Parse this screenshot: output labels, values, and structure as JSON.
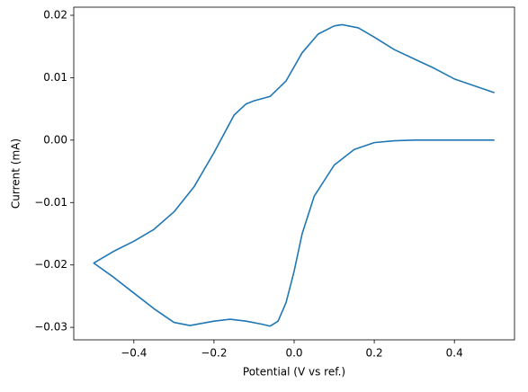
{
  "chart_data": {
    "type": "line",
    "xlabel": "Potential (V vs ref.)",
    "ylabel": "Current (mA)",
    "color": "#1f77b4",
    "x": [
      0.5,
      0.45,
      0.4,
      0.35,
      0.3,
      0.25,
      0.2,
      0.15,
      0.1,
      0.05,
      0.02,
      0.0,
      -0.02,
      -0.04,
      -0.06,
      -0.08,
      -0.12,
      -0.16,
      -0.2,
      -0.26,
      -0.3,
      -0.35,
      -0.4,
      -0.45,
      -0.5,
      -0.45,
      -0.4,
      -0.35,
      -0.3,
      -0.25,
      -0.2,
      -0.15,
      -0.12,
      -0.1,
      -0.06,
      -0.02,
      0.02,
      0.06,
      0.1,
      0.12,
      0.16,
      0.2,
      0.25,
      0.3,
      0.35,
      0.4,
      0.45,
      0.5
    ],
    "values": [
      0.0,
      0.0,
      0.0,
      0.0,
      0.0,
      -0.0001,
      -0.0004,
      -0.0015,
      -0.004,
      -0.009,
      -0.015,
      -0.021,
      -0.026,
      -0.029,
      -0.0298,
      -0.0295,
      -0.029,
      -0.0287,
      -0.029,
      -0.0297,
      -0.0292,
      -0.027,
      -0.0245,
      -0.022,
      -0.0197,
      -0.0178,
      -0.0162,
      -0.0143,
      -0.0115,
      -0.0075,
      -0.002,
      0.004,
      0.0058,
      0.0063,
      0.007,
      0.0095,
      0.014,
      0.017,
      0.0183,
      0.0185,
      0.018,
      0.0165,
      0.0145,
      0.013,
      0.0115,
      0.0098,
      0.0087,
      0.0076
    ],
    "xlim": [
      -0.55,
      0.55
    ],
    "ylim": [
      -0.032,
      0.0213
    ],
    "xticks": [
      {
        "value": -0.4,
        "label": "−0.4"
      },
      {
        "value": -0.2,
        "label": "−0.2"
      },
      {
        "value": 0.0,
        "label": "0.0"
      },
      {
        "value": 0.2,
        "label": "0.2"
      },
      {
        "value": 0.4,
        "label": "0.4"
      }
    ],
    "yticks": [
      {
        "value": -0.03,
        "label": "−0.03"
      },
      {
        "value": -0.02,
        "label": "−0.02"
      },
      {
        "value": -0.01,
        "label": "−0.01"
      },
      {
        "value": 0.0,
        "label": "0.00"
      },
      {
        "value": 0.01,
        "label": "0.01"
      },
      {
        "value": 0.02,
        "label": "0.02"
      }
    ]
  }
}
